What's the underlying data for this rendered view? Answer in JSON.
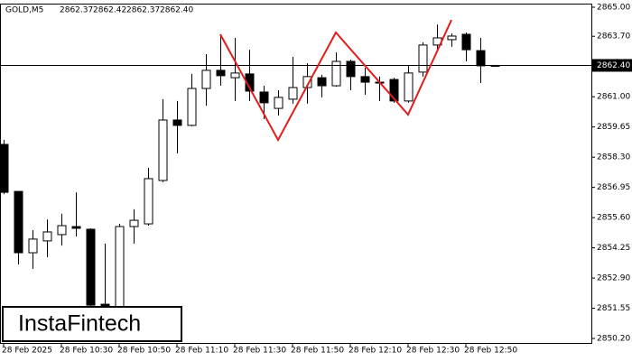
{
  "symbol": "GOLD,M5",
  "ohlc_header": [
    "2862.37",
    "2862.42",
    "2862.37",
    "2862.40"
  ],
  "watermark": "InstaFintech",
  "chart_data": {
    "type": "candlestick",
    "categories": [
      "28 Feb 2025",
      null,
      null,
      null,
      "28 Feb 10:30",
      null,
      null,
      null,
      "28 Feb 10:50",
      null,
      null,
      null,
      "28 Feb 11:10",
      null,
      null,
      null,
      "28 Feb 11:30",
      null,
      null,
      null,
      "28 Feb 11:50",
      null,
      null,
      null,
      "28 Feb 12:10",
      null,
      null,
      null,
      "28 Feb 12:30",
      null,
      null,
      null,
      "28 Feb 12:50",
      null,
      null
    ],
    "open": [
      2858.87,
      2856.77,
      2854.03,
      2854.56,
      2854.84,
      2855.2,
      2855.08,
      2851.73,
      2851.61,
      2855.2,
      2855.32,
      2857.26,
      2859.96,
      2859.72,
      2861.37,
      2862.18,
      2861.85,
      2862.02,
      2861.21,
      2860.48,
      2860.89,
      2861.41,
      2861.85,
      2861.49,
      2862.58,
      2861.9,
      2861.65,
      2861.77,
      2860.81,
      2862.1,
      2863.31,
      2863.55,
      2863.79,
      2863.06,
      2862.37
    ],
    "high": [
      2859.07,
      2856.77,
      2855.04,
      2855.52,
      2855.77,
      2856.73,
      2855.12,
      2854.44,
      2855.32,
      2855.97,
      2857.82,
      2860.89,
      2860.81,
      2862.02,
      2862.9,
      2863.79,
      2863.63,
      2863.1,
      2861.49,
      2861.29,
      2862.78,
      2862.5,
      2861.98,
      2862.98,
      2862.66,
      2862.3,
      2861.9,
      2861.85,
      2862.38,
      2863.43,
      2864.23,
      2863.83,
      2863.87,
      2863.63,
      2862.42
    ],
    "low": [
      2856.65,
      2853.51,
      2853.31,
      2853.83,
      2854.35,
      2854.76,
      2851.65,
      2851.55,
      2851.5,
      2854.44,
      2855.24,
      2857.18,
      2858.47,
      2859.68,
      2860.6,
      2861.49,
      2860.81,
      2860.81,
      2860.0,
      2860.16,
      2860.69,
      2860.69,
      2860.97,
      2861.45,
      2861.29,
      2861.09,
      2860.81,
      2860.73,
      2860.73,
      2861.9,
      2863.1,
      2863.23,
      2862.58,
      2861.61,
      2862.37
    ],
    "close": [
      2856.73,
      2854.03,
      2854.64,
      2854.96,
      2855.24,
      2855.12,
      2851.69,
      2851.61,
      2855.2,
      2855.48,
      2857.34,
      2859.96,
      2859.72,
      2861.37,
      2862.18,
      2861.94,
      2862.06,
      2861.25,
      2860.73,
      2860.97,
      2861.41,
      2861.9,
      2861.49,
      2862.58,
      2861.9,
      2861.65,
      2861.61,
      2860.81,
      2862.06,
      2863.31,
      2863.63,
      2863.71,
      2863.1,
      2862.38,
      2862.4
    ],
    "up_color": "#ffffff",
    "down_color": "#000000",
    "outline_color": "#000000",
    "ylim": [
      2850.0,
      2865.12
    ],
    "yticks": [
      {
        "value": 2865.0,
        "label": "2865.00"
      },
      {
        "value": 2863.7,
        "label": "2863.70"
      },
      {
        "value": 2861.0,
        "label": "2861.00"
      },
      {
        "value": 2859.65,
        "label": "2859.65"
      },
      {
        "value": 2858.3,
        "label": "2858.30"
      },
      {
        "value": 2856.95,
        "label": "2856.95"
      },
      {
        "value": 2855.6,
        "label": "2855.60"
      },
      {
        "value": 2854.25,
        "label": "2854.25"
      },
      {
        "value": 2852.9,
        "label": "2852.90"
      },
      {
        "value": 2851.55,
        "label": "2851.55"
      },
      {
        "value": 2850.2,
        "label": "2850.20"
      }
    ],
    "current_price": {
      "value": 2862.4,
      "label": "2862.40"
    },
    "pattern": {
      "color": "#e41b1b",
      "candle": [
        15,
        19,
        23,
        28,
        31
      ],
      "values": [
        2863.79,
        2859.07,
        2863.87,
        2860.2,
        2864.43
      ]
    }
  }
}
